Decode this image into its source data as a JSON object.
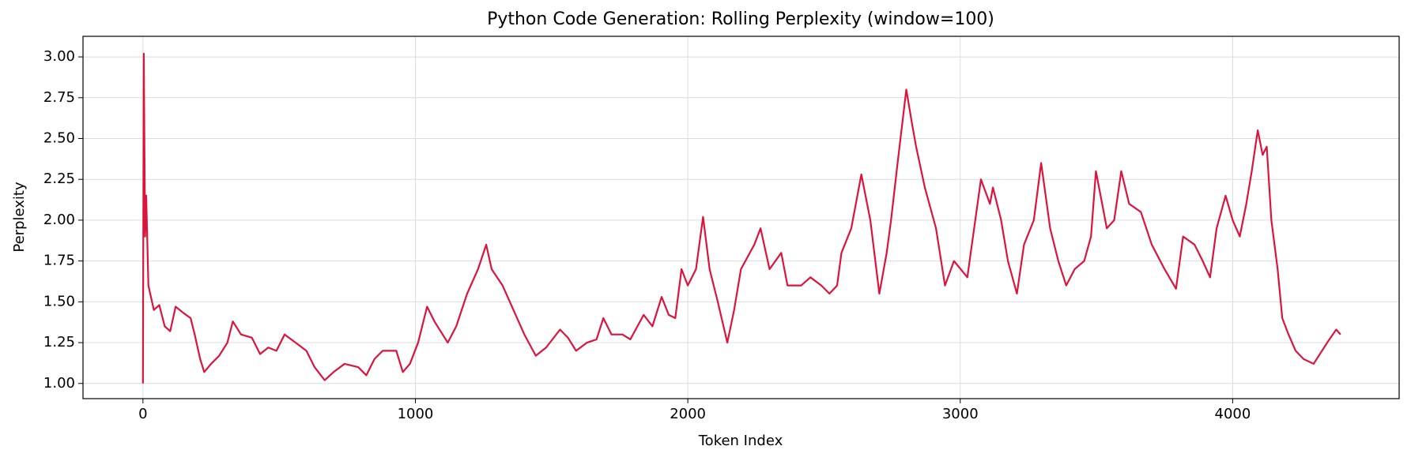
{
  "chart_data": {
    "type": "line",
    "title": "Python Code Generation: Rolling Perplexity (window=100)",
    "x_label": "Token Index",
    "y_label": "Perplexity",
    "color": "#dc143c",
    "grid": true,
    "xlim": [
      -220,
      4611
    ],
    "ylim": [
      0.907,
      3.126
    ],
    "xticks": [
      0,
      1000,
      2000,
      3000,
      4000
    ],
    "yticks": [
      {
        "value": 1.0,
        "label": "1.00"
      },
      {
        "value": 1.25,
        "label": "1.25"
      },
      {
        "value": 1.5,
        "label": "1.50"
      },
      {
        "value": 1.75,
        "label": "1.75"
      },
      {
        "value": 2.0,
        "label": "2.00"
      },
      {
        "value": 2.25,
        "label": "2.25"
      },
      {
        "value": 2.5,
        "label": "2.50"
      },
      {
        "value": 2.75,
        "label": "2.75"
      },
      {
        "value": 3.0,
        "label": "3.00"
      }
    ],
    "x": [
      0,
      3,
      8,
      12,
      20,
      40,
      60,
      80,
      100,
      120,
      150,
      175,
      190,
      210,
      225,
      250,
      280,
      310,
      330,
      360,
      400,
      430,
      460,
      490,
      520,
      560,
      600,
      630,
      667,
      700,
      740,
      790,
      820,
      850,
      880,
      930,
      954,
      980,
      1010,
      1043,
      1070,
      1100,
      1119,
      1150,
      1190,
      1230,
      1260,
      1280,
      1320,
      1360,
      1400,
      1442,
      1480,
      1531,
      1560,
      1590,
      1630,
      1665,
      1690,
      1720,
      1760,
      1789,
      1838,
      1870,
      1904,
      1930,
      1954,
      1977,
      2000,
      2030,
      2056,
      2080,
      2110,
      2145,
      2170,
      2195,
      2244,
      2267,
      2300,
      2343,
      2366,
      2416,
      2450,
      2490,
      2520,
      2548,
      2564,
      2600,
      2637,
      2670,
      2703,
      2730,
      2746,
      2770,
      2802,
      2822,
      2838,
      2870,
      2911,
      2944,
      2977,
      3026,
      3076,
      3109,
      3120,
      3150,
      3175,
      3208,
      3234,
      3270,
      3297,
      3330,
      3360,
      3389,
      3420,
      3455,
      3480,
      3498,
      3538,
      3565,
      3591,
      3620,
      3663,
      3703,
      3750,
      3792,
      3818,
      3860,
      3890,
      3917,
      3941,
      3974,
      4000,
      4026,
      4050,
      4070,
      4092,
      4110,
      4125,
      4142,
      4165,
      4182,
      4205,
      4231,
      4260,
      4297,
      4320,
      4347,
      4380,
      4396
    ],
    "values": [
      1.0,
      3.02,
      1.9,
      2.15,
      1.6,
      1.45,
      1.48,
      1.35,
      1.32,
      1.47,
      1.43,
      1.4,
      1.3,
      1.15,
      1.07,
      1.12,
      1.17,
      1.25,
      1.38,
      1.3,
      1.28,
      1.18,
      1.22,
      1.2,
      1.3,
      1.25,
      1.2,
      1.1,
      1.02,
      1.07,
      1.12,
      1.1,
      1.05,
      1.15,
      1.2,
      1.2,
      1.07,
      1.12,
      1.25,
      1.47,
      1.38,
      1.3,
      1.25,
      1.35,
      1.55,
      1.7,
      1.85,
      1.7,
      1.6,
      1.45,
      1.3,
      1.17,
      1.22,
      1.33,
      1.28,
      1.2,
      1.25,
      1.27,
      1.4,
      1.3,
      1.3,
      1.27,
      1.42,
      1.35,
      1.53,
      1.42,
      1.4,
      1.7,
      1.6,
      1.7,
      2.02,
      1.7,
      1.5,
      1.25,
      1.45,
      1.7,
      1.85,
      1.95,
      1.7,
      1.8,
      1.6,
      1.6,
      1.65,
      1.6,
      1.55,
      1.6,
      1.8,
      1.95,
      2.28,
      2.0,
      1.55,
      1.8,
      2.0,
      2.35,
      2.8,
      2.6,
      2.45,
      2.2,
      1.95,
      1.6,
      1.75,
      1.65,
      2.25,
      2.1,
      2.2,
      2.0,
      1.75,
      1.55,
      1.85,
      2.0,
      2.35,
      1.95,
      1.75,
      1.6,
      1.7,
      1.75,
      1.9,
      2.3,
      1.95,
      2.0,
      2.3,
      2.1,
      2.05,
      1.85,
      1.7,
      1.58,
      1.9,
      1.85,
      1.75,
      1.65,
      1.95,
      2.15,
      2.0,
      1.9,
      2.1,
      2.3,
      2.55,
      2.4,
      2.45,
      2.0,
      1.7,
      1.4,
      1.3,
      1.2,
      1.15,
      1.12,
      1.18,
      1.25,
      1.33,
      1.3
    ]
  }
}
